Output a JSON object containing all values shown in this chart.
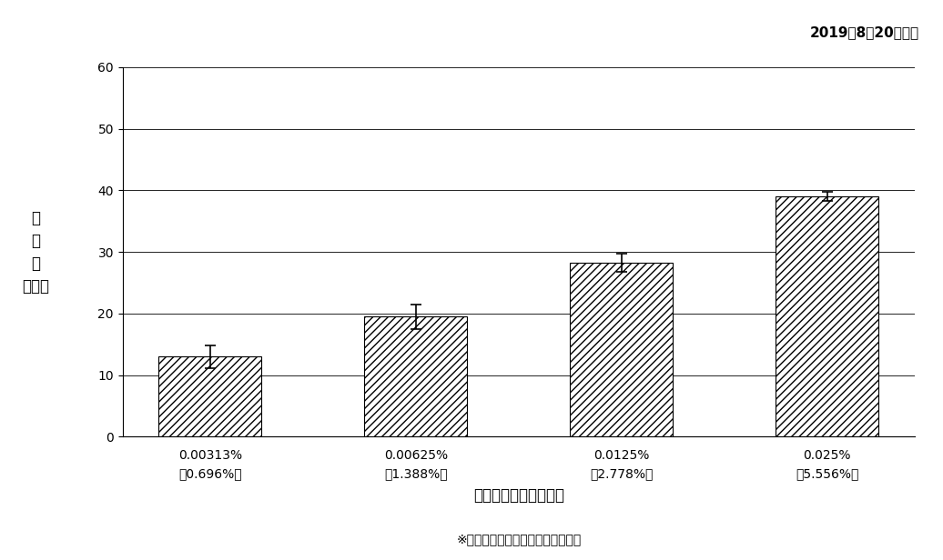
{
  "categories": [
    "0.00313%\n(0.696%)",
    "0.00625%\n(1.388%)",
    "0.0125%\n(2.778%)",
    "0.025%\n(5.556%)"
  ],
  "values": [
    13.0,
    19.5,
    28.3,
    39.0
  ],
  "errors": [
    1.8,
    2.0,
    1.5,
    0.7
  ],
  "ylim": [
    0,
    60
  ],
  "yticks": [
    0,
    10,
    20,
    30,
    40,
    50,
    60
  ],
  "xlabel": "タキシフォリン終濃度",
  "ylabel_lines": [
    "阻",
    "害",
    "率",
    "（％）"
  ],
  "footnote": "※カッコ内はシベリアグレース換算",
  "date_label": "2019年8月20日実施",
  "bar_color": "#ffffff",
  "bar_edgecolor": "#000000",
  "hatch": "////",
  "error_color": "#000000",
  "grid_color": "#000000",
  "background_color": "#ffffff",
  "title_fontsize": 11,
  "axis_fontsize": 11,
  "tick_fontsize": 10,
  "footnote_fontsize": 10,
  "bar_width": 0.5
}
